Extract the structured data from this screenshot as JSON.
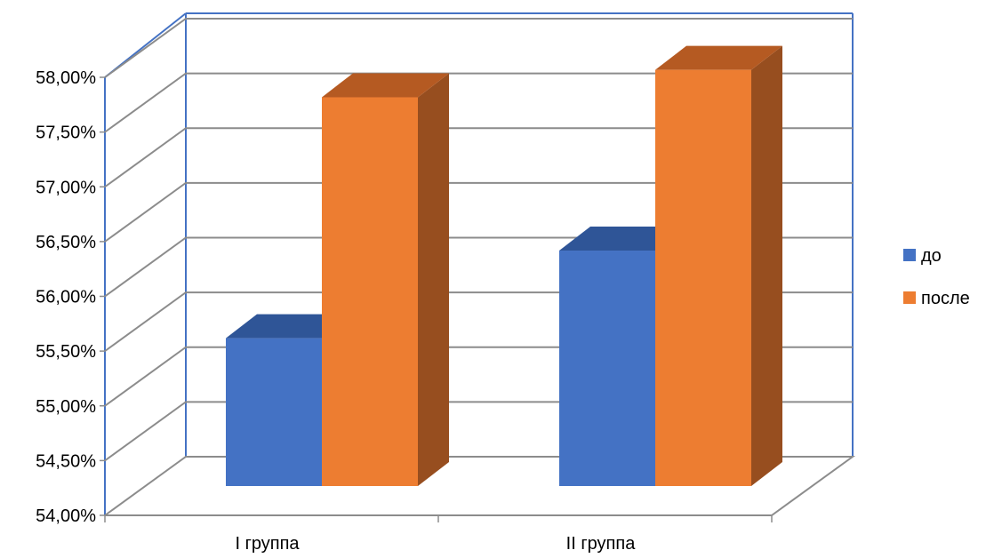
{
  "chart_data": {
    "type": "bar",
    "title": "",
    "xlabel": "",
    "ylabel": "",
    "categories": [
      "I группа",
      "II группа"
    ],
    "series": [
      {
        "name": "до",
        "values": [
          55.35,
          56.15
        ],
        "color": "#4472C4",
        "top_color": "#2F5597",
        "side_color": "#2F5597"
      },
      {
        "name": "после",
        "values": [
          57.55,
          57.8
        ],
        "color": "#ED7D31",
        "top_color": "#B55A22",
        "side_color": "#974E1F"
      }
    ],
    "ylim": [
      54.0,
      58.0
    ],
    "ytick_step": 0.5,
    "y_tick_labels": [
      "54,00%",
      "54,50%",
      "55,00%",
      "55,50%",
      "56,00%",
      "56,50%",
      "57,00%",
      "57,50%",
      "58,00%"
    ],
    "grid": true,
    "legend": "right",
    "style": "3d-column"
  }
}
